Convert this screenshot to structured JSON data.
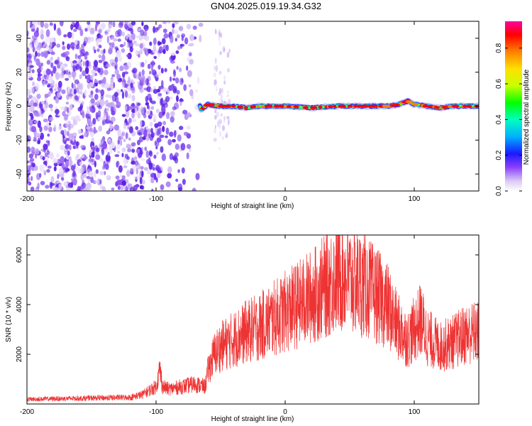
{
  "title": "GN04.2025.019.19.34.G32",
  "colorbar": {
    "label": "Normalized spectral amplitude",
    "ticks": [
      "0.0",
      "0.2",
      "0.4",
      "0.6",
      "0.8"
    ],
    "tick_values": [
      0.0,
      0.2,
      0.4,
      0.6,
      0.8
    ],
    "range": [
      0,
      0.95
    ],
    "colormap": [
      "#ffffff",
      "#d9c8f5",
      "#8a3ffc",
      "#1a1aff",
      "#00b0ff",
      "#00ffc0",
      "#00ff00",
      "#c8ff00",
      "#ffe000",
      "#ff8000",
      "#ff0000",
      "#ff00a0"
    ]
  },
  "chart_data": [
    {
      "type": "heatmap",
      "xlabel": "Height of straight line (km)",
      "ylabel": "Frequency (Hz)",
      "xlim": [
        -200,
        150
      ],
      "ylim": [
        -50,
        50
      ],
      "xticks": [
        -200,
        -100,
        0,
        100
      ],
      "yticks": [
        -40,
        -20,
        0,
        20,
        40
      ],
      "description_note": "",
      "noise_region_x": [
        -200,
        -65
      ],
      "signal_line": [
        {
          "x": -65,
          "y": -2
        },
        {
          "x": -60,
          "y": 1
        },
        {
          "x": -50,
          "y": 0
        },
        {
          "x": -40,
          "y": 0
        },
        {
          "x": -30,
          "y": -1
        },
        {
          "x": -20,
          "y": 0
        },
        {
          "x": 0,
          "y": 0
        },
        {
          "x": 20,
          "y": -1
        },
        {
          "x": 40,
          "y": 0
        },
        {
          "x": 60,
          "y": 0
        },
        {
          "x": 80,
          "y": 0
        },
        {
          "x": 88,
          "y": 1
        },
        {
          "x": 95,
          "y": 3
        },
        {
          "x": 100,
          "y": 1
        },
        {
          "x": 110,
          "y": 0
        },
        {
          "x": 120,
          "y": -1
        },
        {
          "x": 130,
          "y": 0
        },
        {
          "x": 150,
          "y": 0
        }
      ]
    },
    {
      "type": "line",
      "xlabel": "Height of straight line (km)",
      "ylabel": "SNR (10 * v/v)",
      "xlim": [
        -200,
        150
      ],
      "ylim": [
        0,
        6800
      ],
      "xticks": [
        -200,
        -100,
        0,
        100
      ],
      "yticks": [
        2000,
        4000,
        6000
      ],
      "color": "#ee3333",
      "envelope": {
        "x": [
          -200,
          -150,
          -120,
          -110,
          -100,
          -97,
          -95,
          -90,
          -80,
          -70,
          -62,
          -60,
          -55,
          -50,
          -40,
          -30,
          -20,
          -10,
          0,
          10,
          20,
          30,
          40,
          45,
          50,
          60,
          70,
          80,
          85,
          90,
          95,
          100,
          105,
          110,
          120,
          130,
          140,
          150
        ],
        "y": [
          200,
          250,
          280,
          400,
          700,
          1400,
          700,
          600,
          700,
          800,
          700,
          1300,
          2000,
          2300,
          2600,
          2900,
          3100,
          3400,
          3700,
          4000,
          4300,
          4700,
          5100,
          5200,
          5000,
          4800,
          4400,
          3900,
          3300,
          2900,
          2600,
          3000,
          3400,
          2700,
          2300,
          2500,
          2800,
          2900
        ]
      },
      "noise_amplitude_fraction": 0.45
    }
  ],
  "xlabel_bottom_text": "Height of straight line (km)"
}
